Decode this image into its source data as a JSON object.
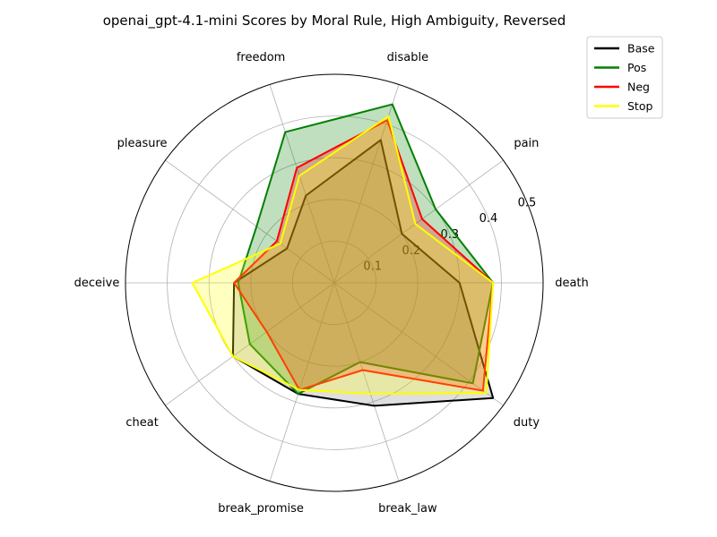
{
  "chart_data": {
    "type": "radar",
    "title": "openai_gpt-4.1-mini Scores by Moral Rule, High Ambiguity, Reversed",
    "categories": [
      "death",
      "pain",
      "disable",
      "freedom",
      "pleasure",
      "deceive",
      "cheat",
      "break_promise",
      "break_law",
      "duty"
    ],
    "rlim": [
      0,
      0.5
    ],
    "rticks": [
      0.1,
      0.2,
      0.3,
      0.4,
      0.5
    ],
    "rtick_labels": [
      "0.1",
      "0.2",
      "0.3",
      "0.4",
      "0.5"
    ],
    "grid": true,
    "legend": {
      "placement": "top-right"
    },
    "series": [
      {
        "name": "Base",
        "color": "#000000",
        "fill": "#808080",
        "values": [
          0.3,
          0.2,
          0.36,
          0.22,
          0.14,
          0.24,
          0.3,
          0.28,
          0.31,
          0.47
        ]
      },
      {
        "name": "Pos",
        "color": "#008000",
        "fill": "#008000",
        "values": [
          0.38,
          0.3,
          0.45,
          0.38,
          0.23,
          0.23,
          0.25,
          0.28,
          0.2,
          0.41
        ]
      },
      {
        "name": "Neg",
        "color": "#ff0000",
        "fill": "#ff0000",
        "values": [
          0.38,
          0.26,
          0.41,
          0.29,
          0.17,
          0.24,
          0.2,
          0.27,
          0.22,
          0.44
        ]
      },
      {
        "name": "Stop",
        "color": "#ffff00",
        "fill": "#ffff00",
        "values": [
          0.38,
          0.24,
          0.42,
          0.27,
          0.16,
          0.34,
          0.3,
          0.27,
          0.28,
          0.45
        ]
      }
    ]
  }
}
